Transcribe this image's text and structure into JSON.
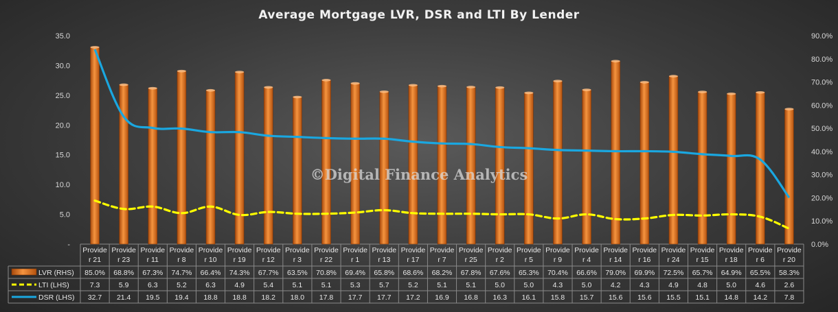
{
  "chart_data": {
    "type": "bar",
    "title": "Average Mortgage  LVR, DSR and LTI By Lender",
    "watermark": "©Digital Finance Analytics",
    "categories": [
      "Provider 21",
      "Provider 23",
      "Provider 11",
      "Provider 8",
      "Provider 10",
      "Provider 19",
      "Provider 12",
      "Provider 3",
      "Provider 22",
      "Provider 1",
      "Provider 13",
      "Provider 17",
      "Provider 7",
      "Provider 25",
      "Provider 2",
      "Provider 5",
      "Provider 9",
      "Provider 4",
      "Provider 14",
      "Provider 16",
      "Provider 24",
      "Provider 15",
      "Provider 18",
      "Provider 6",
      "Provider 20"
    ],
    "category_lines": [
      [
        "Provide",
        "r 21"
      ],
      [
        "Provide",
        "r 23"
      ],
      [
        "Provide",
        "r 11"
      ],
      [
        "Provide",
        "r 8"
      ],
      [
        "Provide",
        "r 10"
      ],
      [
        "Provide",
        "r 19"
      ],
      [
        "Provide",
        "r 12"
      ],
      [
        "Provide",
        "r 3"
      ],
      [
        "Provide",
        "r 22"
      ],
      [
        "Provide",
        "r 1"
      ],
      [
        "Provide",
        "r 13"
      ],
      [
        "Provide",
        "r 17"
      ],
      [
        "Provide",
        "r 7"
      ],
      [
        "Provide",
        "r 25"
      ],
      [
        "Provide",
        "r 2"
      ],
      [
        "Provide",
        "r 5"
      ],
      [
        "Provide",
        "r 9"
      ],
      [
        "Provide",
        "r 4"
      ],
      [
        "Provide",
        "r 14"
      ],
      [
        "Provide",
        "r 16"
      ],
      [
        "Provide",
        "r 24"
      ],
      [
        "Provide",
        "r 15"
      ],
      [
        "Provide",
        "r 18"
      ],
      [
        "Provide",
        "r 6"
      ],
      [
        "Provide",
        "r 20"
      ]
    ],
    "series": [
      {
        "name": "LVR (RHS)",
        "type": "bar",
        "axis": "right",
        "color": "#e8731f",
        "values": [
          85.0,
          68.8,
          67.3,
          74.7,
          66.4,
          74.3,
          67.7,
          63.5,
          70.8,
          69.4,
          65.8,
          68.6,
          68.2,
          67.8,
          67.6,
          65.3,
          70.4,
          66.6,
          79.0,
          69.9,
          72.5,
          65.7,
          64.9,
          65.5,
          58.3
        ],
        "labels": [
          "85.0%",
          "68.8%",
          "67.3%",
          "74.7%",
          "66.4%",
          "74.3%",
          "67.7%",
          "63.5%",
          "70.8%",
          "69.4%",
          "65.8%",
          "68.6%",
          "68.2%",
          "67.8%",
          "67.6%",
          "65.3%",
          "70.4%",
          "66.6%",
          "79.0%",
          "69.9%",
          "72.5%",
          "65.7%",
          "64.9%",
          "65.5%",
          "58.3%"
        ]
      },
      {
        "name": "LTI (LHS)",
        "type": "line",
        "axis": "left",
        "color": "#ffff00",
        "dash": true,
        "values": [
          7.3,
          5.9,
          6.3,
          5.2,
          6.3,
          4.9,
          5.4,
          5.1,
          5.1,
          5.3,
          5.7,
          5.2,
          5.1,
          5.1,
          5.0,
          5.0,
          4.3,
          5.0,
          4.2,
          4.3,
          4.9,
          4.8,
          5.0,
          4.6,
          2.6
        ],
        "labels": [
          "7.3",
          "5.9",
          "6.3",
          "5.2",
          "6.3",
          "4.9",
          "5.4",
          "5.1",
          "5.1",
          "5.3",
          "5.7",
          "5.2",
          "5.1",
          "5.1",
          "5.0",
          "5.0",
          "4.3",
          "5.0",
          "4.2",
          "4.3",
          "4.9",
          "4.8",
          "5.0",
          "4.6",
          "2.6"
        ]
      },
      {
        "name": "DSR (LHS)",
        "type": "line",
        "axis": "left",
        "color": "#1aa7e0",
        "dash": false,
        "values": [
          32.7,
          21.4,
          19.5,
          19.4,
          18.8,
          18.8,
          18.2,
          18.0,
          17.8,
          17.7,
          17.7,
          17.2,
          16.9,
          16.8,
          16.3,
          16.1,
          15.8,
          15.7,
          15.6,
          15.6,
          15.5,
          15.1,
          14.8,
          14.2,
          7.8
        ],
        "labels": [
          "32.7",
          "21.4",
          "19.5",
          "19.4",
          "18.8",
          "18.8",
          "18.2",
          "18.0",
          "17.8",
          "17.7",
          "17.7",
          "17.2",
          "16.9",
          "16.8",
          "16.3",
          "16.1",
          "15.8",
          "15.7",
          "15.6",
          "15.6",
          "15.5",
          "15.1",
          "14.8",
          "14.2",
          "7.8"
        ]
      }
    ],
    "left_axis": {
      "ylim": [
        0,
        35
      ],
      "ticks": [
        0,
        5,
        10,
        15,
        20,
        25,
        30,
        35
      ],
      "tick_labels": [
        "-",
        "5.0",
        "10.0",
        "15.0",
        "20.0",
        "25.0",
        "30.0",
        "35.0"
      ]
    },
    "right_axis": {
      "ylim": [
        0,
        90
      ],
      "ticks": [
        0,
        10,
        20,
        30,
        40,
        50,
        60,
        70,
        80,
        90
      ],
      "tick_labels": [
        "0.0%",
        "10.0%",
        "20.0%",
        "30.0%",
        "40.0%",
        "50.0%",
        "60.0%",
        "70.0%",
        "80.0%",
        "90.0%"
      ]
    },
    "grid": false,
    "legend": "data-table"
  }
}
